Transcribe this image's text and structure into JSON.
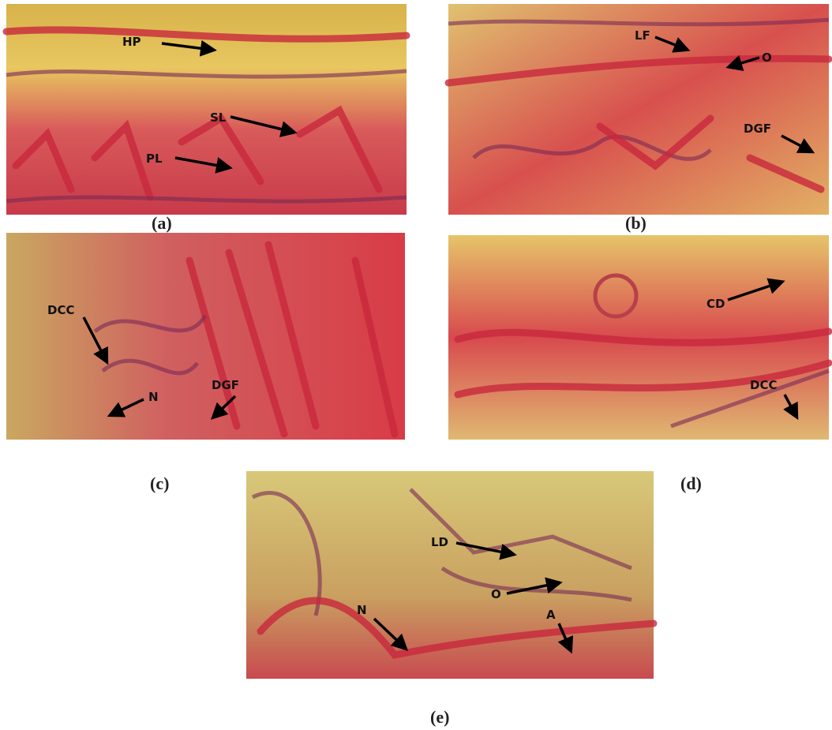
{
  "panels": [
    {
      "label": "(a)",
      "annotations": [
        "HP",
        "SL",
        "PL"
      ]
    },
    {
      "label": "(b)",
      "annotations": [
        "LF",
        "O",
        "DGF"
      ]
    },
    {
      "label": "(c)",
      "annotations": [
        "DCC",
        "N",
        "DGF"
      ]
    },
    {
      "label": "(d)",
      "annotations": [
        "CD",
        "DCC"
      ]
    },
    {
      "label": "(e)",
      "annotations": [
        "LD",
        "O",
        "N",
        "A"
      ]
    }
  ]
}
